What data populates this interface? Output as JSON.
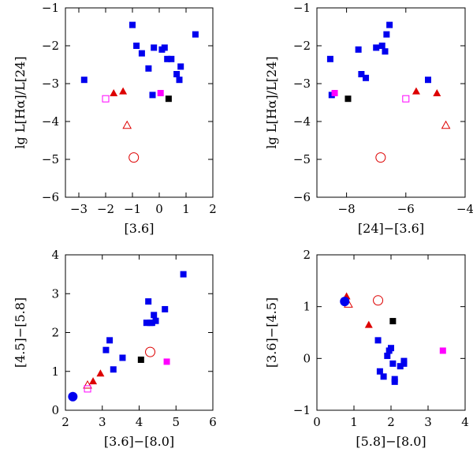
{
  "chart_data": [
    {
      "type": "scatter",
      "xlabel": "[3.6]",
      "ylabel": "lg L[Hα]/L[24]",
      "xlim": [
        -3.5,
        2
      ],
      "ylim": [
        -6,
        -1
      ],
      "xticks": [
        -3,
        -2,
        -1,
        0,
        1,
        2
      ],
      "yticks": [
        -6,
        -5,
        -4,
        -3,
        -2,
        -1
      ],
      "xtick_labels": [
        "−3",
        "−2",
        "−1",
        "0",
        "1",
        "2"
      ],
      "ytick_labels": [
        "−6",
        "−5",
        "−4",
        "−3",
        "−2",
        "−1"
      ],
      "series": [
        {
          "marker": "filled-square",
          "color": "#0000ee",
          "points": [
            [
              -2.8,
              -2.9
            ],
            [
              -1.0,
              -1.45
            ],
            [
              -0.85,
              -2.0
            ],
            [
              -0.65,
              -2.2
            ],
            [
              -0.4,
              -2.6
            ],
            [
              -0.25,
              -3.3
            ],
            [
              -0.2,
              -2.05
            ],
            [
              0.1,
              -2.1
            ],
            [
              0.2,
              -2.05
            ],
            [
              0.3,
              -2.35
            ],
            [
              0.45,
              -2.35
            ],
            [
              0.65,
              -2.75
            ],
            [
              0.75,
              -2.9
            ],
            [
              0.8,
              -2.55
            ],
            [
              1.35,
              -1.7
            ]
          ]
        },
        {
          "marker": "filled-triangle",
          "color": "#dd0000",
          "points": [
            [
              -1.7,
              -3.25
            ],
            [
              -1.35,
              -3.2
            ]
          ]
        },
        {
          "marker": "open-triangle",
          "color": "#dd0000",
          "points": [
            [
              -1.2,
              -4.1
            ]
          ]
        },
        {
          "marker": "open-circle",
          "color": "#dd0000",
          "points": [
            [
              -0.95,
              -4.95
            ]
          ]
        },
        {
          "marker": "open-square",
          "color": "#ff00ff",
          "points": [
            [
              -2.0,
              -3.4
            ]
          ]
        },
        {
          "marker": "filled-square",
          "color": "#ff00ff",
          "points": [
            [
              0.05,
              -3.25
            ]
          ]
        },
        {
          "marker": "filled-square",
          "color": "#000000",
          "points": [
            [
              0.35,
              -3.4
            ]
          ]
        }
      ]
    },
    {
      "type": "scatter",
      "xlabel": "[24]−[3.6]",
      "ylabel": "lg L[Hα]/L[24]",
      "xlim": [
        -9,
        -4
      ],
      "ylim": [
        -6,
        -1
      ],
      "xticks": [
        -8,
        -6,
        -4
      ],
      "yticks": [
        -6,
        -5,
        -4,
        -3,
        -2,
        -1
      ],
      "xtick_labels": [
        "−8",
        "−6",
        "−4"
      ],
      "ytick_labels": [
        "−6",
        "−5",
        "−4",
        "−3",
        "−2",
        "−1"
      ],
      "series": [
        {
          "marker": "filled-square",
          "color": "#0000ee",
          "points": [
            [
              -8.55,
              -2.35
            ],
            [
              -8.5,
              -3.3
            ],
            [
              -7.6,
              -2.1
            ],
            [
              -7.5,
              -2.75
            ],
            [
              -7.35,
              -2.85
            ],
            [
              -7.0,
              -2.05
            ],
            [
              -6.8,
              -2.0
            ],
            [
              -6.7,
              -2.15
            ],
            [
              -6.65,
              -1.7
            ],
            [
              -6.55,
              -1.45
            ],
            [
              -5.25,
              -2.9
            ]
          ]
        },
        {
          "marker": "filled-triangle",
          "color": "#dd0000",
          "points": [
            [
              -5.65,
              -3.2
            ],
            [
              -4.95,
              -3.25
            ]
          ]
        },
        {
          "marker": "open-triangle",
          "color": "#dd0000",
          "points": [
            [
              -4.65,
              -4.1
            ]
          ]
        },
        {
          "marker": "open-circle",
          "color": "#dd0000",
          "points": [
            [
              -6.85,
              -4.95
            ]
          ]
        },
        {
          "marker": "open-square",
          "color": "#ff00ff",
          "points": [
            [
              -6.0,
              -3.4
            ]
          ]
        },
        {
          "marker": "filled-square",
          "color": "#ff00ff",
          "points": [
            [
              -8.4,
              -3.25
            ]
          ]
        },
        {
          "marker": "filled-square",
          "color": "#000000",
          "points": [
            [
              -7.95,
              -3.4
            ]
          ]
        }
      ]
    },
    {
      "type": "scatter",
      "xlabel": "[3.6]−[8.0]",
      "ylabel": "[4.5]−[5.8]",
      "xlim": [
        2,
        6
      ],
      "ylim": [
        0,
        4
      ],
      "xticks": [
        2,
        3,
        4,
        5,
        6
      ],
      "yticks": [
        0,
        1,
        2,
        3,
        4
      ],
      "xtick_labels": [
        "2",
        "3",
        "4",
        "5",
        "6"
      ],
      "ytick_labels": [
        "0",
        "1",
        "2",
        "3",
        "4"
      ],
      "series": [
        {
          "marker": "filled-square",
          "color": "#0000ee",
          "points": [
            [
              3.1,
              1.55
            ],
            [
              3.2,
              1.8
            ],
            [
              3.3,
              1.05
            ],
            [
              3.55,
              1.35
            ],
            [
              4.2,
              2.25
            ],
            [
              4.25,
              2.8
            ],
            [
              4.3,
              2.25
            ],
            [
              4.35,
              2.25
            ],
            [
              4.4,
              2.45
            ],
            [
              4.45,
              2.3
            ],
            [
              4.7,
              2.6
            ],
            [
              5.2,
              3.5
            ]
          ]
        },
        {
          "marker": "filled-triangle",
          "color": "#dd0000",
          "points": [
            [
              2.75,
              0.75
            ],
            [
              2.95,
              0.95
            ]
          ]
        },
        {
          "marker": "open-triangle",
          "color": "#dd0000",
          "points": [
            [
              2.6,
              0.65
            ]
          ]
        },
        {
          "marker": "open-circle",
          "color": "#dd0000",
          "points": [
            [
              4.3,
              1.5
            ]
          ]
        },
        {
          "marker": "open-square",
          "color": "#ff00ff",
          "points": [
            [
              2.6,
              0.55
            ]
          ]
        },
        {
          "marker": "filled-square",
          "color": "#ff00ff",
          "points": [
            [
              4.75,
              1.25
            ]
          ]
        },
        {
          "marker": "filled-square",
          "color": "#000000",
          "points": [
            [
              4.05,
              1.3
            ]
          ]
        },
        {
          "marker": "filled-circle",
          "color": "#0000ee",
          "points": [
            [
              2.2,
              0.35
            ]
          ]
        }
      ]
    },
    {
      "type": "scatter",
      "xlabel": "[5.8]−[8.0]",
      "ylabel": "[3.6]−[4.5]",
      "xlim": [
        0,
        4
      ],
      "ylim": [
        -1,
        2
      ],
      "xticks": [
        0,
        1,
        2,
        3,
        4
      ],
      "yticks": [
        -1,
        0,
        1,
        2
      ],
      "xtick_labels": [
        "0",
        "1",
        "2",
        "3",
        "4"
      ],
      "ytick_labels": [
        "−1",
        "0",
        "1",
        "2"
      ],
      "series": [
        {
          "marker": "filled-square",
          "color": "#0000ee",
          "points": [
            [
              1.65,
              0.35
            ],
            [
              1.7,
              -0.25
            ],
            [
              1.8,
              -0.35
            ],
            [
              1.9,
              0.05
            ],
            [
              1.95,
              0.15
            ],
            [
              2.0,
              0.2
            ],
            [
              2.05,
              -0.1
            ],
            [
              2.1,
              -0.4
            ],
            [
              2.1,
              -0.45
            ],
            [
              2.25,
              -0.15
            ],
            [
              2.35,
              -0.05
            ],
            [
              2.35,
              -0.1
            ]
          ]
        },
        {
          "marker": "filled-triangle",
          "color": "#dd0000",
          "points": [
            [
              0.8,
              1.2
            ],
            [
              1.4,
              0.65
            ]
          ]
        },
        {
          "marker": "open-triangle",
          "color": "#dd0000",
          "points": [
            [
              0.85,
              1.05
            ]
          ]
        },
        {
          "marker": "open-circle",
          "color": "#dd0000",
          "points": [
            [
              1.65,
              1.12
            ]
          ]
        },
        {
          "marker": "filled-square",
          "color": "#ff00ff",
          "points": [
            [
              3.4,
              0.15
            ]
          ]
        },
        {
          "marker": "filled-square",
          "color": "#000000",
          "points": [
            [
              2.05,
              0.72
            ]
          ]
        },
        {
          "marker": "filled-circle",
          "color": "#0000ee",
          "points": [
            [
              0.75,
              1.1
            ]
          ]
        }
      ]
    }
  ]
}
